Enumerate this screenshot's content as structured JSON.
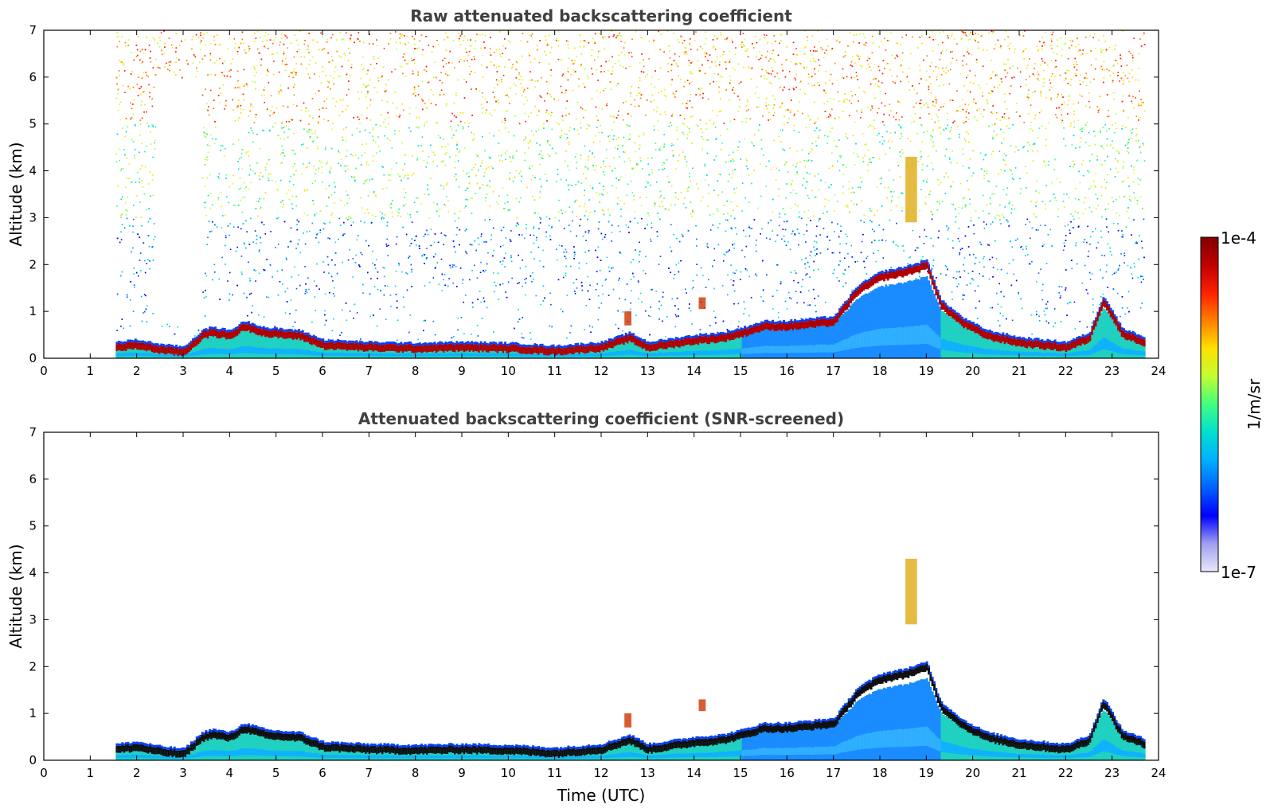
{
  "chart_data": [
    {
      "type": "heatmap",
      "title": "Raw attenuated backscattering coefficient",
      "xlabel": "",
      "ylabel": "Altitude (km)",
      "xlim": [
        0,
        24
      ],
      "ylim": [
        0,
        7
      ],
      "xticks": [
        "0",
        "1",
        "2",
        "3",
        "4",
        "5",
        "6",
        "7",
        "8",
        "9",
        "10",
        "11",
        "12",
        "13",
        "14",
        "15",
        "16",
        "17",
        "18",
        "19",
        "20",
        "21",
        "22",
        "23",
        "24"
      ],
      "yticks": [
        "0",
        "1",
        "2",
        "3",
        "4",
        "5",
        "6",
        "7"
      ],
      "data_time_range": [
        1.55,
        23.7
      ],
      "layer_top_km": [
        {
          "t": 1.55,
          "z": 0.3
        },
        {
          "t": 2.0,
          "z": 0.35
        },
        {
          "t": 2.5,
          "z": 0.25
        },
        {
          "t": 3.0,
          "z": 0.2
        },
        {
          "t": 3.4,
          "z": 0.55
        },
        {
          "t": 3.6,
          "z": 0.62
        },
        {
          "t": 4.0,
          "z": 0.55
        },
        {
          "t": 4.3,
          "z": 0.75
        },
        {
          "t": 4.8,
          "z": 0.6
        },
        {
          "t": 5.5,
          "z": 0.55
        },
        {
          "t": 6.0,
          "z": 0.35
        },
        {
          "t": 7.0,
          "z": 0.3
        },
        {
          "t": 8.0,
          "z": 0.28
        },
        {
          "t": 9.0,
          "z": 0.3
        },
        {
          "t": 10.0,
          "z": 0.28
        },
        {
          "t": 11.0,
          "z": 0.22
        },
        {
          "t": 12.0,
          "z": 0.3
        },
        {
          "t": 12.6,
          "z": 0.5
        },
        {
          "t": 13.0,
          "z": 0.3
        },
        {
          "t": 14.0,
          "z": 0.45
        },
        {
          "t": 14.6,
          "z": 0.5
        },
        {
          "t": 15.0,
          "z": 0.6
        },
        {
          "t": 15.5,
          "z": 0.75
        },
        {
          "t": 16.0,
          "z": 0.75
        },
        {
          "t": 16.5,
          "z": 0.8
        },
        {
          "t": 17.0,
          "z": 0.85
        },
        {
          "t": 17.5,
          "z": 1.5
        },
        {
          "t": 18.0,
          "z": 1.8
        },
        {
          "t": 18.5,
          "z": 1.9
        },
        {
          "t": 19.0,
          "z": 2.05
        },
        {
          "t": 19.3,
          "z": 1.2
        },
        {
          "t": 19.8,
          "z": 0.8
        },
        {
          "t": 20.3,
          "z": 0.55
        },
        {
          "t": 21.0,
          "z": 0.4
        },
        {
          "t": 21.5,
          "z": 0.35
        },
        {
          "t": 22.0,
          "z": 0.3
        },
        {
          "t": 22.5,
          "z": 0.5
        },
        {
          "t": 22.8,
          "z": 1.3
        },
        {
          "t": 23.2,
          "z": 0.6
        },
        {
          "t": 23.7,
          "z": 0.4
        }
      ],
      "elevated_features_km": [
        {
          "t0": 18.55,
          "t1": 18.8,
          "z0": 2.9,
          "z1": 4.3
        },
        {
          "t0": 14.1,
          "t1": 14.25,
          "z0": 1.05,
          "z1": 1.3
        },
        {
          "t0": 12.5,
          "t1": 12.65,
          "z0": 0.7,
          "z1": 1.0
        }
      ]
    },
    {
      "type": "heatmap",
      "title": "Attenuated backscattering coefficient (SNR-screened)",
      "xlabel": "Time (UTC)",
      "ylabel": "Altitude (km)",
      "xlim": [
        0,
        24
      ],
      "ylim": [
        0,
        7
      ],
      "xticks": [
        "0",
        "1",
        "2",
        "3",
        "4",
        "5",
        "6",
        "7",
        "8",
        "9",
        "10",
        "11",
        "12",
        "13",
        "14",
        "15",
        "16",
        "17",
        "18",
        "19",
        "20",
        "21",
        "22",
        "23",
        "24"
      ],
      "yticks": [
        "0",
        "1",
        "2",
        "3",
        "4",
        "5",
        "6",
        "7"
      ],
      "data_time_range": [
        1.55,
        23.7
      ]
    }
  ],
  "colorbar": {
    "label": "1/m/sr",
    "max_label": "1e-4",
    "min_label": "1e-7",
    "colors": [
      "#e8e8f8",
      "#a0a0f0",
      "#0000ff",
      "#0060ff",
      "#00b0ff",
      "#00e0d0",
      "#40ff80",
      "#c0ff30",
      "#ffe000",
      "#ff8000",
      "#ff2000",
      "#c00000",
      "#800000"
    ]
  }
}
